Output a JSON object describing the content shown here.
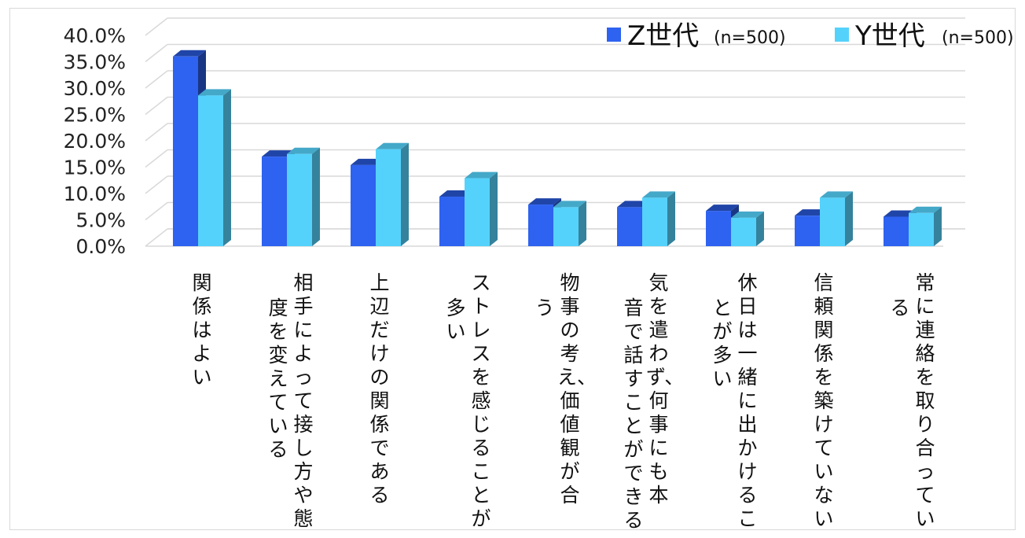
{
  "chart_data": {
    "type": "bar",
    "ylim": [
      0,
      40
    ],
    "yticks": [
      "0.0%",
      "5.0%",
      "10.0%",
      "15.0%",
      "20.0%",
      "25.0%",
      "30.0%",
      "35.0%",
      "40.0%"
    ],
    "categories": [
      [
        "関係はよい"
      ],
      [
        "相手によって接し方や態",
        "度を変えている"
      ],
      [
        "上辺だけの関係である"
      ],
      [
        "ストレスを感じることが",
        "多い"
      ],
      [
        "物事の考え、価値観が合",
        "う"
      ],
      [
        "気を遣わず、何事にも本",
        "音で話すことができる"
      ],
      [
        "休日は一緒に出かけるこ",
        "とが多い"
      ],
      [
        "信頼関係を築けていない"
      ],
      [
        "常に連絡を取り合ってい",
        "る"
      ]
    ],
    "series": [
      {
        "name": "Z世代",
        "n": "(n=500)",
        "color": "#2e62f0",
        "values": [
          36.0,
          17.0,
          15.4,
          9.4,
          7.9,
          7.4,
          6.7,
          5.8,
          5.6
        ]
      },
      {
        "name": "Y世代",
        "n": "(n=500)",
        "color": "#55d2fb",
        "values": [
          28.6,
          17.5,
          18.4,
          12.9,
          7.4,
          9.2,
          5.4,
          9.2,
          6.3
        ]
      }
    ]
  }
}
